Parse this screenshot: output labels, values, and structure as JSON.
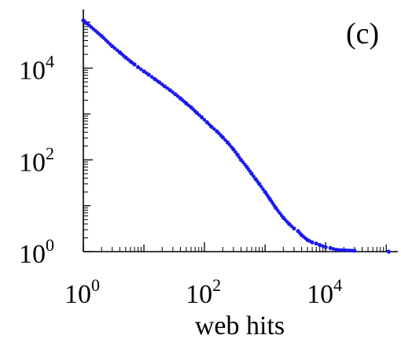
{
  "chart_data": {
    "type": "scatter",
    "panel_label": "(c)",
    "xlabel": "web hits",
    "ylabel": "",
    "x_scale": "log",
    "y_scale": "log",
    "xlim": [
      1,
      130000
    ],
    "ylim": [
      1,
      150000
    ],
    "x_ticks": [
      {
        "value": 1,
        "base": "10",
        "exp": "0"
      },
      {
        "value": 100,
        "base": "10",
        "exp": "2"
      },
      {
        "value": 10000,
        "base": "10",
        "exp": "4"
      }
    ],
    "y_ticks": [
      {
        "value": 1,
        "base": "10",
        "exp": "0"
      },
      {
        "value": 100,
        "base": "10",
        "exp": "2"
      },
      {
        "value": 10000,
        "base": "10",
        "exp": "4"
      }
    ],
    "grid": false,
    "marker_color": "#1a1aee",
    "series": [
      {
        "points": [
          [
            1,
            110000
          ],
          [
            2,
            50000
          ],
          [
            3,
            30000
          ],
          [
            4,
            22000
          ],
          [
            5,
            17000
          ],
          [
            6,
            14000
          ],
          [
            7,
            12000
          ],
          [
            8,
            10500
          ],
          [
            10,
            8500
          ],
          [
            12,
            7200
          ],
          [
            15,
            5800
          ],
          [
            18,
            4900
          ],
          [
            22,
            4000
          ],
          [
            27,
            3300
          ],
          [
            33,
            2700
          ],
          [
            40,
            2200
          ],
          [
            50,
            1700
          ],
          [
            60,
            1400
          ],
          [
            75,
            1050
          ],
          [
            90,
            850
          ],
          [
            110,
            660
          ],
          [
            130,
            530
          ],
          [
            160,
            420
          ],
          [
            200,
            310
          ],
          [
            240,
            240
          ],
          [
            300,
            170
          ],
          [
            350,
            130
          ],
          [
            400,
            100
          ],
          [
            500,
            70
          ],
          [
            600,
            50
          ],
          [
            700,
            38
          ],
          [
            800,
            30
          ],
          [
            1000,
            20
          ],
          [
            1200,
            14
          ],
          [
            1500,
            9
          ],
          [
            2000,
            5.5
          ],
          [
            2500,
            4
          ],
          [
            3000,
            3.2
          ],
          [
            3500,
            2.8
          ],
          [
            4000,
            2.3
          ],
          [
            5000,
            1.8
          ],
          [
            6000,
            1.6
          ],
          [
            7000,
            1.5
          ],
          [
            8000,
            1.4
          ],
          [
            10000,
            1.25
          ],
          [
            12000,
            1.2
          ],
          [
            15000,
            1.1
          ],
          [
            30000,
            1.05
          ],
          [
            110000,
            1
          ]
        ]
      }
    ]
  }
}
